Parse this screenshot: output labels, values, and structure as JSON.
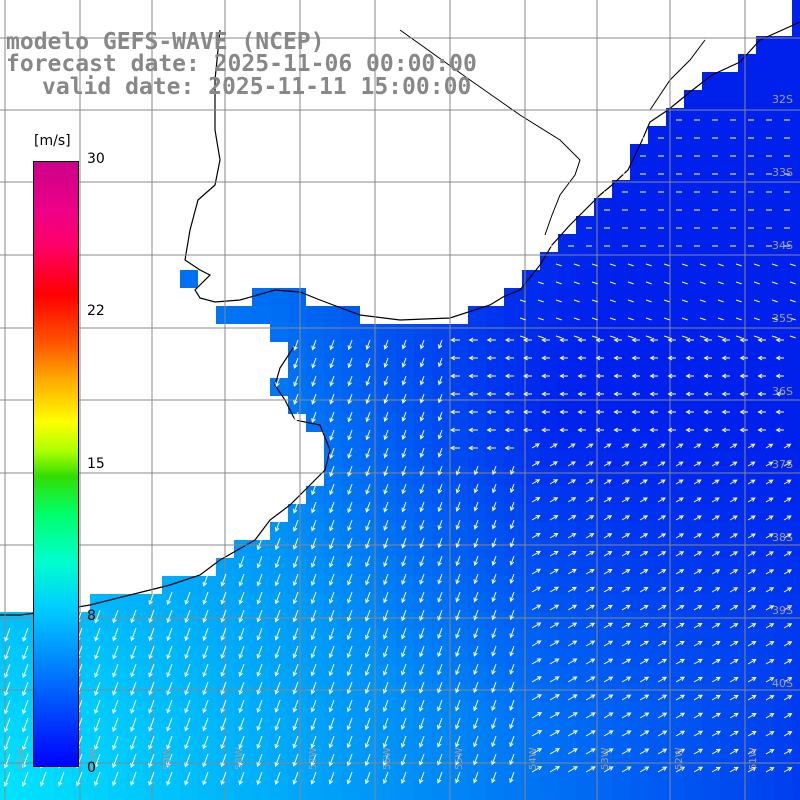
{
  "title": {
    "line1": "modelo GEFS-WAVE (NCEP)",
    "line2": "forecast date: 2025-11-06 00:00:00",
    "line3": "valid date: 2025-11-11 15:00:00"
  },
  "colorbar": {
    "unit": "[m/s]",
    "ticks": [
      "30",
      "22",
      "15",
      "8",
      "0"
    ],
    "min": 0,
    "max": 30
  },
  "lat_labels": [
    "32S",
    "33S",
    "34S",
    "35S",
    "36S",
    "37S",
    "38S",
    "39S",
    "40S"
  ],
  "lon_labels": [
    "61W",
    "60W",
    "59W",
    "58W",
    "57W",
    "56W",
    "55W",
    "54W",
    "53W",
    "52W",
    "51W"
  ],
  "colors": {
    "land": "#ffffff",
    "ocean_low": "#0033ee",
    "ocean_mid": "#0080ff",
    "ocean_high": "#00e0ff",
    "grid": "#888888",
    "arrow": "#ffffff"
  }
}
